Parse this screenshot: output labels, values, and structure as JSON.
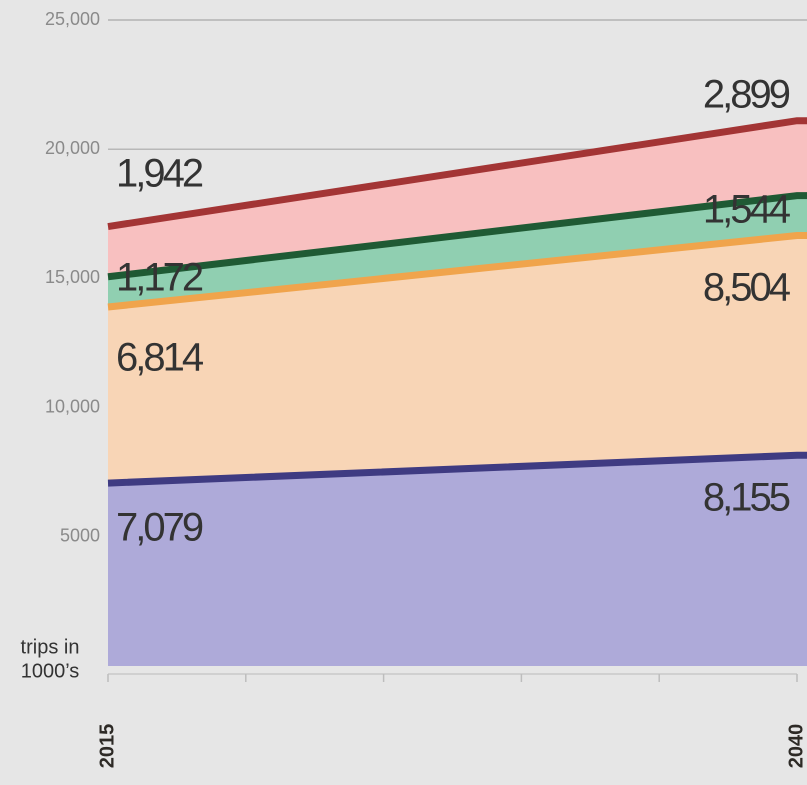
{
  "chart_data": {
    "type": "stacked-area",
    "x": [
      2015,
      2040
    ],
    "xticks": [
      2015,
      2040
    ],
    "xminorticks": [
      2020,
      2025,
      2030,
      2035
    ],
    "xlim": [
      2015,
      2040
    ],
    "ylim": [
      0,
      25000
    ],
    "yticks": [
      {
        "value": 5000,
        "label": "5000"
      },
      {
        "value": 10000,
        "label": "10,000"
      },
      {
        "value": 15000,
        "label": "15,000"
      },
      {
        "value": 20000,
        "label": "20,000"
      },
      {
        "value": 25000,
        "label": "25,000"
      }
    ],
    "ylabel": [
      "trips in",
      "1000’s"
    ],
    "grid": true,
    "series": [
      {
        "color": "#aeaad9",
        "line_color": "#3f3b82",
        "values": [
          7079,
          8155
        ],
        "value_labels": [
          "7,079",
          "8,155"
        ]
      },
      {
        "color": "#f8d5b6",
        "line_color": "#f0a44c",
        "values": [
          6814,
          8504
        ],
        "value_labels": [
          "6,814",
          "8,504"
        ]
      },
      {
        "color": "#90cfb1",
        "line_color": "#1f5a34",
        "values": [
          1172,
          1544
        ],
        "value_labels": [
          "1,172",
          "1,544"
        ]
      },
      {
        "color": "#f8c0c0",
        "line_color": "#a33535",
        "values": [
          1942,
          2899
        ],
        "value_labels": [
          "1,942",
          "2,899"
        ]
      }
    ]
  }
}
